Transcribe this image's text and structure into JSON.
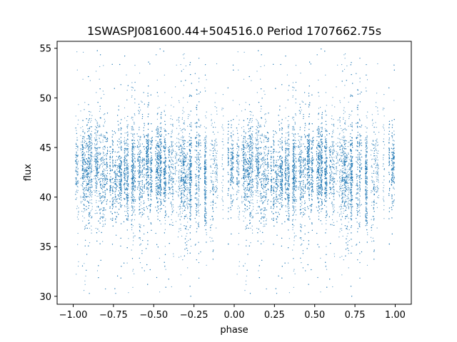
{
  "chart_data": {
    "type": "scatter",
    "title": "1SWASPJ081600.44+504516.0 Period 1707662.75s",
    "xlabel": "phase",
    "ylabel": "flux",
    "xlim": [
      -1.1,
      1.1
    ],
    "ylim": [
      29.2,
      55.7
    ],
    "xticks": [
      -1.0,
      -0.75,
      -0.5,
      -0.25,
      0.0,
      0.25,
      0.5,
      0.75,
      1.0
    ],
    "xtick_labels": [
      "−1.00",
      "−0.75",
      "−0.50",
      "−0.25",
      "0.00",
      "0.25",
      "0.50",
      "0.75",
      "1.00"
    ],
    "yticks": [
      30,
      35,
      40,
      45,
      50,
      55
    ],
    "ytick_labels": [
      "30",
      "35",
      "40",
      "45",
      "50",
      "55"
    ],
    "grid": false,
    "series_color": "#1f77b4",
    "point_cloud": {
      "x_range": [
        -1.0,
        1.0
      ],
      "mean_flux": 42.5,
      "core_flux_range": [
        37,
        48
      ],
      "outlier_flux_range": [
        30,
        55
      ],
      "symmetric_about_zero": true
    }
  }
}
